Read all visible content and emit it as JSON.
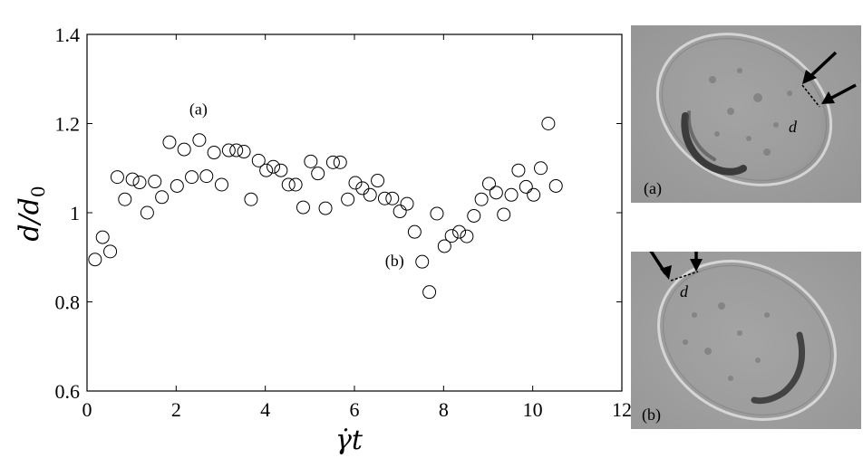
{
  "chart_data": {
    "type": "scatter",
    "title": "",
    "xlabel": "γ̇t",
    "ylabel": "d/d0",
    "xlim": [
      0,
      12
    ],
    "ylim": [
      0.6,
      1.4
    ],
    "xticks": [
      0,
      2,
      4,
      6,
      8,
      10,
      12
    ],
    "xtick_labels": [
      "0",
      "2",
      "4",
      "6",
      "8",
      "10",
      "12"
    ],
    "yticks": [
      0.6,
      0.8,
      1.0,
      1.2,
      1.4
    ],
    "ytick_labels": [
      "0.6",
      "0.8",
      "1",
      "1.2",
      "1.4"
    ],
    "grid": false,
    "marker": "open-circle",
    "annotations": [
      {
        "text": "(a)",
        "x": 2.5,
        "y": 1.22
      },
      {
        "text": "(b)",
        "x": 6.9,
        "y": 0.88
      }
    ],
    "series": [
      {
        "x": [
          0.18,
          0.35,
          0.52,
          0.68,
          0.85,
          1.02,
          1.18,
          1.35,
          1.52,
          1.68,
          1.85,
          2.02,
          2.18,
          2.35,
          2.52,
          2.68,
          2.85,
          3.02,
          3.18,
          3.35,
          3.52,
          3.68,
          3.85,
          4.02,
          4.18,
          4.35,
          4.52,
          4.68,
          4.85,
          5.02,
          5.18,
          5.35,
          5.52,
          5.68,
          5.85,
          6.02,
          6.18,
          6.35,
          6.52,
          6.68,
          6.85,
          7.02,
          7.18,
          7.35,
          7.52,
          7.68,
          7.85,
          8.02,
          8.18,
          8.35,
          8.52,
          8.68,
          8.85,
          9.02,
          9.18,
          9.35,
          9.52,
          9.68,
          9.85,
          10.02,
          10.18,
          10.35,
          10.52
        ],
        "y": [
          0.895,
          0.945,
          0.913,
          1.08,
          1.03,
          1.075,
          1.068,
          1.0,
          1.07,
          1.035,
          1.158,
          1.06,
          1.142,
          1.08,
          1.163,
          1.082,
          1.135,
          1.063,
          1.14,
          1.14,
          1.137,
          1.03,
          1.117,
          1.095,
          1.103,
          1.095,
          1.063,
          1.063,
          1.012,
          1.115,
          1.088,
          1.01,
          1.113,
          1.113,
          1.03,
          1.067,
          1.055,
          1.04,
          1.072,
          1.032,
          1.032,
          1.003,
          1.02,
          0.957,
          0.89,
          0.822,
          0.998,
          0.925,
          0.948,
          0.957,
          0.947,
          0.993,
          1.03,
          1.065,
          1.045,
          0.996,
          1.04,
          1.095,
          1.058,
          1.04,
          1.1,
          1.2,
          1.06
        ]
      }
    ]
  },
  "panels": [
    {
      "label": "(a)",
      "measure_label": "d"
    },
    {
      "label": "(b)",
      "measure_label": "d"
    }
  ]
}
